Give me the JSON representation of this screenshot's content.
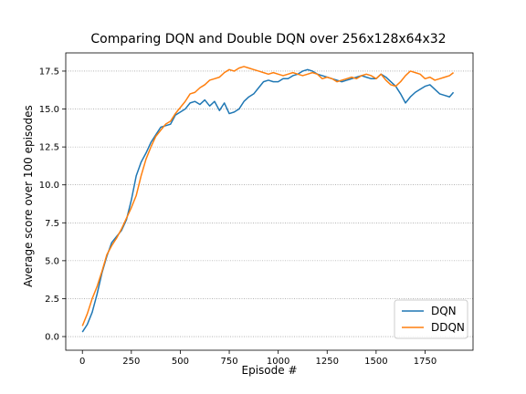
{
  "chart_data": {
    "type": "line",
    "title": "Comparing DQN and Double DQN over 256x128x64x32",
    "xlabel": "Episode #",
    "ylabel": "Average score over 100 episodes",
    "xlim": [
      -85,
      1995
    ],
    "ylim": [
      -0.9,
      18.7
    ],
    "xticks": [
      0,
      250,
      500,
      750,
      1000,
      1250,
      1500,
      1750
    ],
    "yticks": [
      0.0,
      2.5,
      5.0,
      7.5,
      10.0,
      12.5,
      15.0,
      17.5
    ],
    "grid": "y-dotted",
    "legend_position": "lower-right",
    "series": [
      {
        "name": "DQN",
        "color": "#1f77b4",
        "x": [
          0,
          25,
          50,
          75,
          100,
          125,
          150,
          175,
          200,
          225,
          250,
          275,
          300,
          325,
          350,
          375,
          400,
          425,
          450,
          475,
          500,
          525,
          550,
          575,
          600,
          625,
          650,
          675,
          700,
          725,
          750,
          775,
          800,
          825,
          850,
          875,
          900,
          925,
          950,
          975,
          1000,
          1025,
          1050,
          1075,
          1100,
          1125,
          1150,
          1175,
          1200,
          1225,
          1250,
          1275,
          1300,
          1325,
          1350,
          1375,
          1400,
          1425,
          1450,
          1475,
          1500,
          1525,
          1550,
          1575,
          1600,
          1625,
          1650,
          1675,
          1700,
          1725,
          1750,
          1775,
          1800,
          1825,
          1850,
          1875,
          1895
        ],
        "y": [
          0.3,
          0.8,
          1.6,
          2.8,
          4.2,
          5.3,
          6.2,
          6.6,
          7.0,
          7.7,
          9.0,
          10.6,
          11.5,
          12.1,
          12.8,
          13.3,
          13.8,
          13.9,
          14.0,
          14.6,
          14.8,
          15.0,
          15.4,
          15.5,
          15.3,
          15.6,
          15.2,
          15.5,
          14.9,
          15.4,
          14.7,
          14.8,
          15.0,
          15.5,
          15.8,
          16.0,
          16.4,
          16.8,
          16.9,
          16.8,
          16.8,
          17.0,
          17.0,
          17.2,
          17.3,
          17.5,
          17.6,
          17.5,
          17.3,
          17.2,
          17.1,
          17.0,
          16.9,
          16.8,
          16.9,
          17.0,
          17.1,
          17.2,
          17.1,
          17.0,
          17.0,
          17.3,
          17.1,
          16.8,
          16.5,
          16.0,
          15.4,
          15.8,
          16.1,
          16.3,
          16.5,
          16.6,
          16.3,
          16.0,
          15.9,
          15.8,
          16.1
        ]
      },
      {
        "name": "DDQN",
        "color": "#ff7f0e",
        "x": [
          0,
          25,
          50,
          75,
          100,
          125,
          150,
          175,
          200,
          225,
          250,
          275,
          300,
          325,
          350,
          375,
          400,
          425,
          450,
          475,
          500,
          525,
          550,
          575,
          600,
          625,
          650,
          675,
          700,
          725,
          750,
          775,
          800,
          825,
          850,
          875,
          900,
          925,
          950,
          975,
          1000,
          1025,
          1050,
          1075,
          1100,
          1125,
          1150,
          1175,
          1200,
          1225,
          1250,
          1275,
          1300,
          1325,
          1350,
          1375,
          1400,
          1425,
          1450,
          1475,
          1500,
          1525,
          1550,
          1575,
          1600,
          1625,
          1650,
          1675,
          1700,
          1725,
          1750,
          1775,
          1800,
          1825,
          1850,
          1875,
          1895
        ],
        "y": [
          0.7,
          1.5,
          2.5,
          3.3,
          4.3,
          5.4,
          6.0,
          6.5,
          7.1,
          7.8,
          8.5,
          9.3,
          10.6,
          11.7,
          12.5,
          13.2,
          13.6,
          14.0,
          14.2,
          14.7,
          15.1,
          15.5,
          16.0,
          16.1,
          16.4,
          16.6,
          16.9,
          17.0,
          17.1,
          17.4,
          17.6,
          17.5,
          17.7,
          17.8,
          17.7,
          17.6,
          17.5,
          17.4,
          17.3,
          17.4,
          17.3,
          17.2,
          17.3,
          17.4,
          17.3,
          17.2,
          17.3,
          17.4,
          17.3,
          17.0,
          17.1,
          17.0,
          16.8,
          16.9,
          17.0,
          17.1,
          17.0,
          17.2,
          17.3,
          17.2,
          17.0,
          17.3,
          16.9,
          16.6,
          16.5,
          16.8,
          17.2,
          17.5,
          17.4,
          17.3,
          17.0,
          17.1,
          16.9,
          17.0,
          17.1,
          17.2,
          17.4
        ]
      }
    ]
  }
}
